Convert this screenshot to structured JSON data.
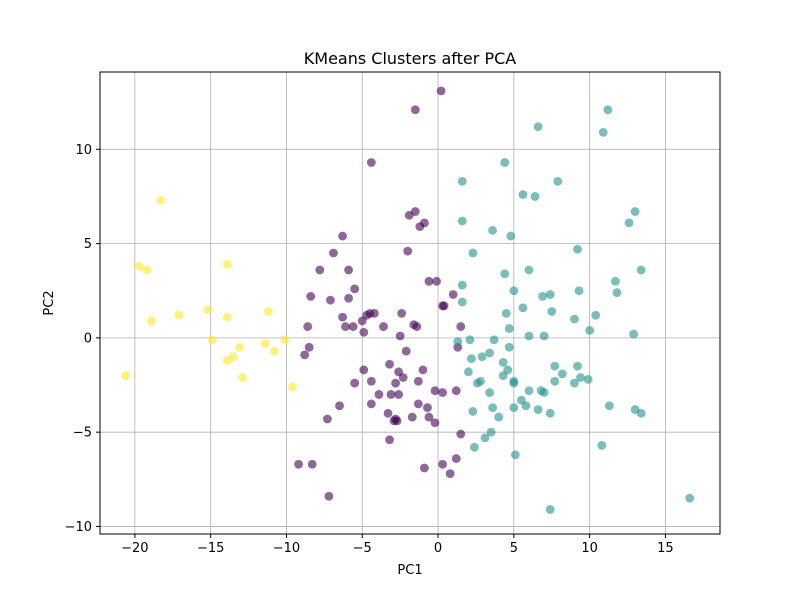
{
  "chart_data": {
    "type": "scatter",
    "title": "KMeans Clusters after PCA",
    "xlabel": "PC1",
    "ylabel": "PC2",
    "xlim": [
      -22.3,
      18.6
    ],
    "ylim": [
      -10.4,
      14.1
    ],
    "x_ticks": [
      -20,
      -15,
      -10,
      -5,
      0,
      5,
      10,
      15
    ],
    "y_ticks": [
      -10,
      -5,
      0,
      5,
      10
    ],
    "x_tick_labels": [
      "−20",
      "−15",
      "−10",
      "−5",
      "0",
      "5",
      "10",
      "15"
    ],
    "y_tick_labels": [
      "−10",
      "−5",
      "0",
      "5",
      "10"
    ],
    "grid": true,
    "legend": "none",
    "cluster_colors": [
      "#440154",
      "#21918c",
      "#fde725"
    ],
    "series": [
      {
        "values": [
          [
            0.2,
            13.1
          ],
          [
            -1.5,
            12.1
          ],
          [
            -4.4,
            9.3
          ],
          [
            -1.5,
            6.7
          ],
          [
            -1.9,
            6.5
          ],
          [
            -0.9,
            6.1
          ],
          [
            -1.2,
            5.9
          ],
          [
            -6.3,
            5.4
          ],
          [
            -2.0,
            4.6
          ],
          [
            -6.9,
            4.5
          ],
          [
            -7.8,
            3.6
          ],
          [
            -5.9,
            3.6
          ],
          [
            -0.6,
            3.0
          ],
          [
            -0.1,
            3.0
          ],
          [
            -5.5,
            2.6
          ],
          [
            -5.9,
            2.1
          ],
          [
            -8.4,
            2.2
          ],
          [
            -7.1,
            2.0
          ],
          [
            1.0,
            2.3
          ],
          [
            -4.5,
            1.3
          ],
          [
            -4.2,
            1.3
          ],
          [
            -4.7,
            1.2
          ],
          [
            0.3,
            1.7
          ],
          [
            0.4,
            1.7
          ],
          [
            -6.3,
            1.1
          ],
          [
            -2.4,
            1.3
          ],
          [
            -5.0,
            0.9
          ],
          [
            -6.1,
            0.6
          ],
          [
            -5.6,
            0.6
          ],
          [
            -8.6,
            0.6
          ],
          [
            -1.6,
            0.7
          ],
          [
            -3.6,
            0.6
          ],
          [
            -1.4,
            0.6
          ],
          [
            -4.9,
            0.3
          ],
          [
            -2.5,
            0.1
          ],
          [
            1.5,
            0.6
          ],
          [
            -8.5,
            -0.5
          ],
          [
            -8.8,
            -0.9
          ],
          [
            -2.1,
            -0.7
          ],
          [
            1.3,
            -0.5
          ],
          [
            -4.9,
            -1.7
          ],
          [
            -3.2,
            -1.4
          ],
          [
            -2.6,
            -1.8
          ],
          [
            -1.0,
            -1.7
          ],
          [
            -4.4,
            -2.3
          ],
          [
            -5.5,
            -2.4
          ],
          [
            -2.8,
            -2.4
          ],
          [
            -1.3,
            -2.3
          ],
          [
            -2.3,
            -2.1
          ],
          [
            -0.2,
            -2.8
          ],
          [
            0.3,
            -2.9
          ],
          [
            1.2,
            -2.8
          ],
          [
            -3.9,
            -3.0
          ],
          [
            -2.6,
            -3.0
          ],
          [
            -3.1,
            -3.0
          ],
          [
            -4.4,
            -3.5
          ],
          [
            -6.5,
            -3.6
          ],
          [
            -1.3,
            -3.5
          ],
          [
            -0.7,
            -3.7
          ],
          [
            -7.3,
            -4.3
          ],
          [
            -3.3,
            -4.0
          ],
          [
            -2.8,
            -4.3
          ],
          [
            -2.9,
            -4.4
          ],
          [
            -2.7,
            -4.4
          ],
          [
            -0.6,
            -4.2
          ],
          [
            -1.7,
            -4.2
          ],
          [
            -0.2,
            -4.5
          ],
          [
            1.5,
            -5.1
          ],
          [
            -3.2,
            -5.4
          ],
          [
            1.2,
            -6.4
          ],
          [
            -9.2,
            -6.7
          ],
          [
            -8.3,
            -6.7
          ],
          [
            -0.9,
            -6.9
          ],
          [
            0.3,
            -6.7
          ],
          [
            0.8,
            -7.2
          ],
          [
            -7.2,
            -8.4
          ]
        ]
      },
      {
        "values": [
          [
            11.2,
            12.1
          ],
          [
            6.6,
            11.2
          ],
          [
            10.9,
            10.9
          ],
          [
            4.4,
            9.3
          ],
          [
            1.6,
            8.3
          ],
          [
            7.9,
            8.3
          ],
          [
            5.6,
            7.6
          ],
          [
            6.4,
            7.5
          ],
          [
            13.0,
            6.7
          ],
          [
            12.6,
            6.1
          ],
          [
            1.6,
            6.2
          ],
          [
            3.6,
            5.7
          ],
          [
            4.8,
            5.4
          ],
          [
            9.2,
            4.7
          ],
          [
            2.3,
            4.5
          ],
          [
            6.0,
            3.6
          ],
          [
            4.4,
            3.4
          ],
          [
            13.4,
            3.6
          ],
          [
            11.7,
            3.0
          ],
          [
            1.6,
            2.8
          ],
          [
            5.0,
            2.5
          ],
          [
            7.4,
            2.3
          ],
          [
            6.9,
            2.2
          ],
          [
            9.3,
            2.5
          ],
          [
            11.8,
            2.4
          ],
          [
            1.6,
            1.9
          ],
          [
            5.6,
            1.6
          ],
          [
            7.5,
            1.4
          ],
          [
            4.5,
            1.3
          ],
          [
            10.4,
            1.2
          ],
          [
            9.0,
            1.0
          ],
          [
            4.7,
            0.5
          ],
          [
            10.0,
            0.4
          ],
          [
            12.9,
            0.2
          ],
          [
            6.0,
            0.1
          ],
          [
            7.0,
            0.1
          ],
          [
            2.1,
            -0.1
          ],
          [
            3.7,
            -0.1
          ],
          [
            1.3,
            -0.2
          ],
          [
            3.4,
            -0.8
          ],
          [
            4.7,
            -0.5
          ],
          [
            5.0,
            -2.3
          ],
          [
            2.2,
            -1.1
          ],
          [
            4.3,
            -1.3
          ],
          [
            2.9,
            -1.0
          ],
          [
            7.7,
            -1.5
          ],
          [
            9.2,
            -1.5
          ],
          [
            8.2,
            -1.9
          ],
          [
            2.0,
            -1.8
          ],
          [
            4.6,
            -1.7
          ],
          [
            4.3,
            -2.0
          ],
          [
            2.8,
            -2.3
          ],
          [
            5.0,
            -2.4
          ],
          [
            9.4,
            -2.1
          ],
          [
            9.9,
            -2.2
          ],
          [
            2.6,
            -2.4
          ],
          [
            7.7,
            -2.3
          ],
          [
            9.0,
            -2.4
          ],
          [
            3.4,
            -2.9
          ],
          [
            6.0,
            -2.8
          ],
          [
            6.8,
            -2.8
          ],
          [
            7.0,
            -2.9
          ],
          [
            5.5,
            -3.3
          ],
          [
            5.0,
            -3.7
          ],
          [
            3.6,
            -3.7
          ],
          [
            5.8,
            -3.6
          ],
          [
            4.0,
            -4.2
          ],
          [
            2.3,
            -3.9
          ],
          [
            6.6,
            -3.8
          ],
          [
            7.4,
            -4.0
          ],
          [
            11.3,
            -3.6
          ],
          [
            13.0,
            -3.8
          ],
          [
            13.4,
            -4.0
          ],
          [
            3.5,
            -5.0
          ],
          [
            3.1,
            -5.3
          ],
          [
            2.4,
            -5.8
          ],
          [
            10.8,
            -5.7
          ],
          [
            5.1,
            -6.2
          ],
          [
            16.6,
            -8.5
          ],
          [
            7.4,
            -9.1
          ]
        ]
      },
      {
        "values": [
          [
            -18.3,
            7.3
          ],
          [
            -19.7,
            3.8
          ],
          [
            -19.2,
            3.6
          ],
          [
            -13.9,
            3.9
          ],
          [
            -18.9,
            0.9
          ],
          [
            -17.1,
            1.2
          ],
          [
            -15.2,
            1.5
          ],
          [
            -13.9,
            1.1
          ],
          [
            -11.2,
            1.4
          ],
          [
            -14.9,
            -0.1
          ],
          [
            -11.4,
            -0.3
          ],
          [
            -10.1,
            -0.1
          ],
          [
            -13.1,
            -0.5
          ],
          [
            -13.5,
            -1.0
          ],
          [
            -13.9,
            -1.2
          ],
          [
            -10.8,
            -0.7
          ],
          [
            -12.9,
            -2.1
          ],
          [
            -9.6,
            -2.6
          ],
          [
            -20.6,
            -2.0
          ]
        ]
      }
    ]
  }
}
